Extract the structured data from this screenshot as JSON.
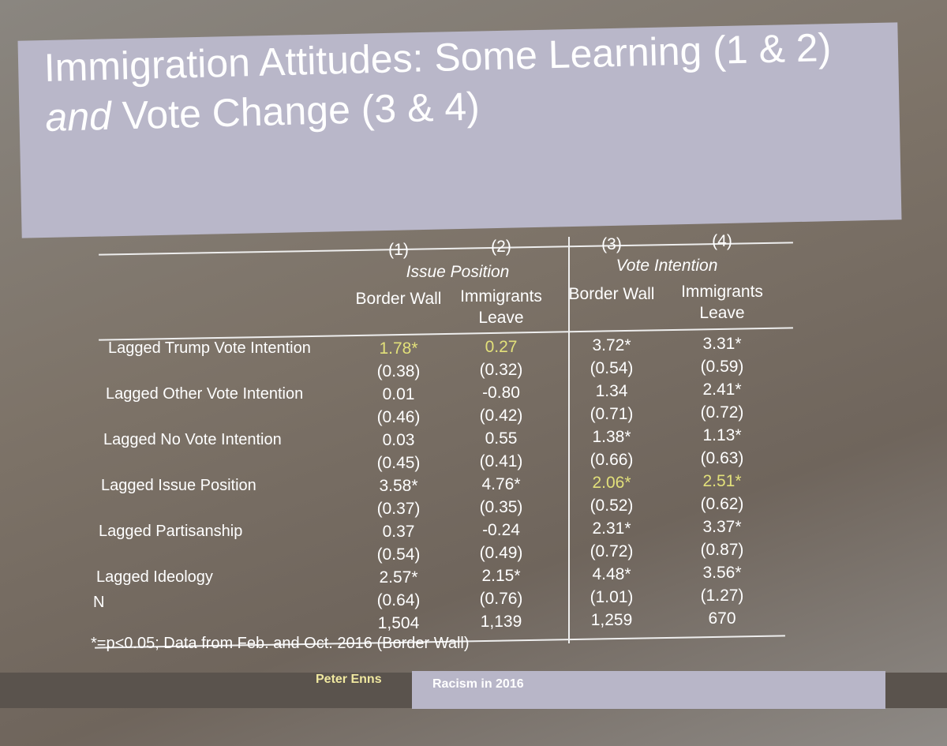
{
  "slide": {
    "title": [
      "Immigration Attitudes: Some Learning (1 & 2)",
      "and",
      "Vote Change (3 & 4)"
    ],
    "table": {
      "column_numbers": [
        "(1)",
        "(2)",
        "(3)",
        "(4)"
      ],
      "groups": [
        "Issue Position",
        "Vote Intention"
      ],
      "columns": [
        "Border Wall",
        "Immigrants Leave",
        "Border Wall",
        "Immigrants Leave"
      ],
      "rows": [
        {
          "label": "Lagged Trump Vote Intention",
          "coef": [
            "1.78*",
            "0.27",
            "3.72*",
            "3.31*"
          ],
          "se": [
            "(0.38)",
            "(0.32)",
            "(0.54)",
            "(0.59)"
          ]
        },
        {
          "label": "Lagged Other Vote Intention",
          "coef": [
            "0.01",
            "-0.80",
            "1.34",
            "2.41*"
          ],
          "se": [
            "(0.46)",
            "(0.42)",
            "(0.71)",
            "(0.72)"
          ]
        },
        {
          "label": "Lagged No Vote Intention",
          "coef": [
            "0.03",
            "0.55",
            "1.38*",
            "1.13*"
          ],
          "se": [
            "(0.45)",
            "(0.41)",
            "(0.66)",
            "(0.63)"
          ]
        },
        {
          "label": "Lagged Issue Position",
          "coef": [
            "3.58*",
            "4.76*",
            "2.06*",
            "2.51*"
          ],
          "se": [
            "(0.37)",
            "(0.35)",
            "(0.52)",
            "(0.62)"
          ]
        },
        {
          "label": "Lagged Partisanship",
          "coef": [
            "0.37",
            "-0.24",
            "2.31*",
            "3.37*"
          ],
          "se": [
            "(0.54)",
            "(0.49)",
            "(0.72)",
            "(0.87)"
          ]
        },
        {
          "label": "Lagged Ideology",
          "coef": [
            "2.57*",
            "2.15*",
            "4.48*",
            "3.56*"
          ],
          "se": [
            "(0.64)",
            "(0.76)",
            "(1.01)",
            "(1.27)"
          ]
        }
      ],
      "n_label": "N",
      "n": [
        "1,504",
        "1,139",
        "1,259",
        "670"
      ],
      "footnote": "*=p<0.05; Data from Feb. and Oct. 2016 (Border Wall)"
    },
    "footer": {
      "author": "Peter Enns",
      "talk": "Racism in 2016"
    }
  }
}
